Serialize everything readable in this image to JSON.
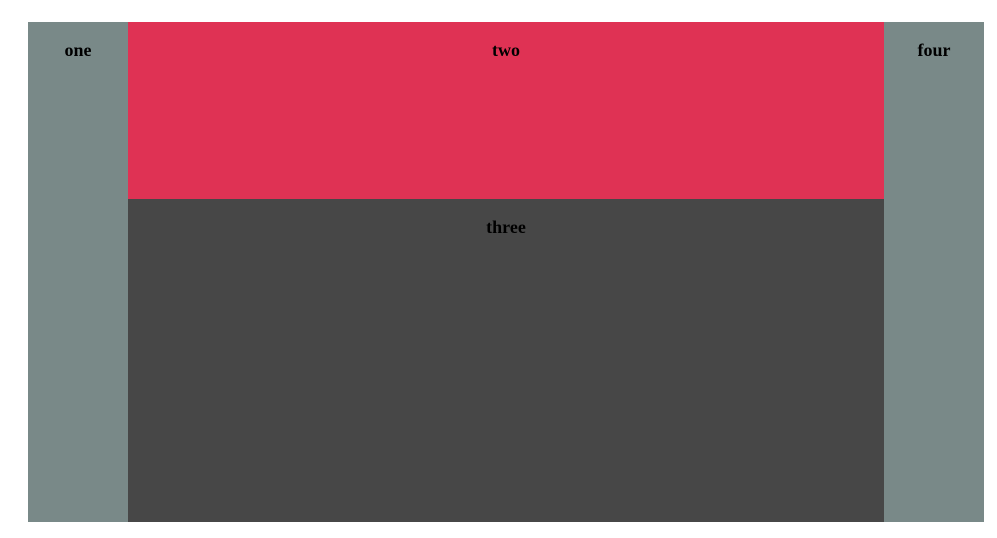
{
  "panels": {
    "one": {
      "label": "one",
      "color": "#798988"
    },
    "two": {
      "label": "two",
      "color": "#df3254"
    },
    "three": {
      "label": "three",
      "color": "#474747"
    },
    "four": {
      "label": "four",
      "color": "#798988"
    }
  }
}
